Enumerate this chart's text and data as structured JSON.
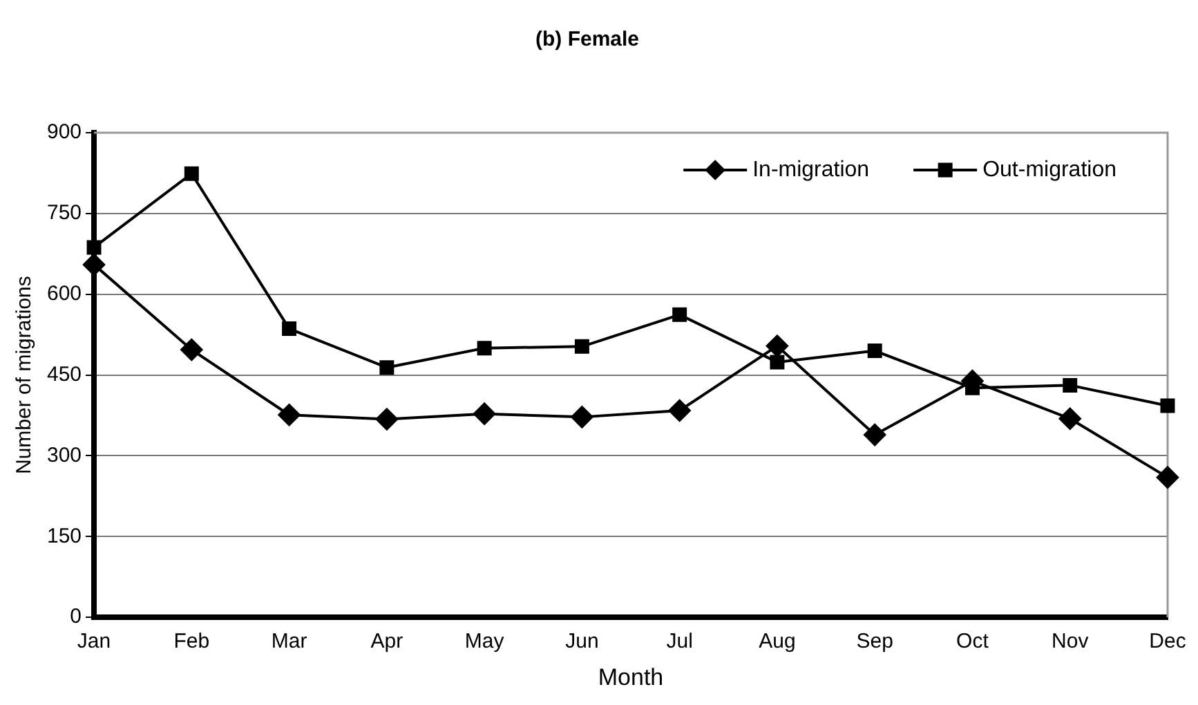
{
  "chart_data": {
    "type": "line",
    "title": "(b) Female",
    "xlabel": "Month",
    "ylabel": "Number of migrations",
    "categories": [
      "Jan",
      "Feb",
      "Mar",
      "Apr",
      "May",
      "Jun",
      "Jul",
      "Aug",
      "Sep",
      "Oct",
      "Nov",
      "Dec"
    ],
    "series": [
      {
        "name": "In-migration",
        "color": "#000000",
        "marker": "diamond",
        "values": [
          655,
          497,
          376,
          368,
          378,
          372,
          384,
          504,
          339,
          439,
          369,
          260
        ]
      },
      {
        "name": "Out-migration",
        "color": "#000000",
        "marker": "square",
        "values": [
          687,
          824,
          536,
          464,
          500,
          503,
          562,
          474,
          495,
          426,
          431,
          393
        ]
      }
    ],
    "ylim": [
      0,
      900
    ],
    "yticks": [
      0,
      150,
      300,
      450,
      600,
      750,
      900
    ],
    "grid": "y",
    "legend": "top right",
    "line_style": "solid"
  }
}
